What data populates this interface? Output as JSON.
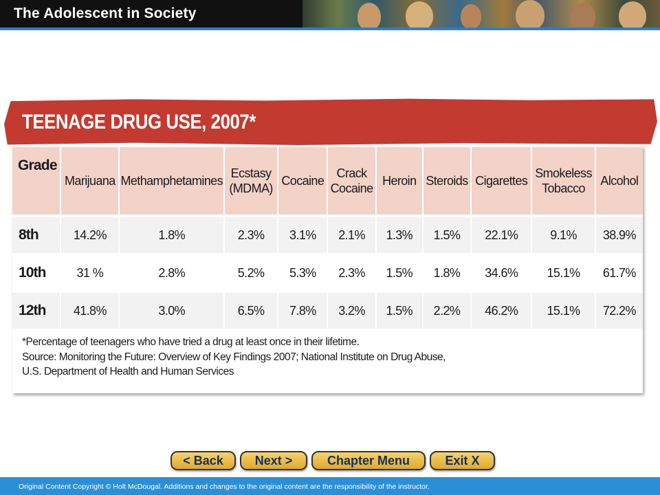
{
  "header": {
    "title": "The Adolescent in Society"
  },
  "banner": {
    "title": "TEENAGE DRUG USE, 2007*"
  },
  "table": {
    "columns": [
      {
        "label": "Grade",
        "sub": ""
      },
      {
        "label": "Marijuana",
        "sub": ""
      },
      {
        "label": "Methamphetamines",
        "sub": ""
      },
      {
        "label": "Ecstasy",
        "sub": "(MDMA)"
      },
      {
        "label": "Cocaine",
        "sub": ""
      },
      {
        "label": "Crack",
        "sub": "Cocaine"
      },
      {
        "label": "Heroin",
        "sub": ""
      },
      {
        "label": "Steroids",
        "sub": ""
      },
      {
        "label": "Cigarettes",
        "sub": ""
      },
      {
        "label": "Smokeless",
        "sub": "Tobacco"
      },
      {
        "label": "Alcohol",
        "sub": ""
      }
    ],
    "rows": [
      [
        "8th",
        "14.2%",
        "1.8%",
        "2.3%",
        "3.1%",
        "2.1%",
        "1.3%",
        "1.5%",
        "22.1%",
        "9.1%",
        "38.9%"
      ],
      [
        "10th",
        "31 %",
        "2.8%",
        "5.2%",
        "5.3%",
        "2.3%",
        "1.5%",
        "1.8%",
        "34.6%",
        "15.1%",
        "61.7%"
      ],
      [
        "12th",
        "41.8%",
        "3.0%",
        "6.5%",
        "7.8%",
        "3.2%",
        "1.5%",
        "2.2%",
        "46.2%",
        "15.1%",
        "72.2%"
      ]
    ]
  },
  "footnote": {
    "line1": "*Percentage of teenagers who have tried a drug at least once in their lifetime.",
    "line2": "Source: Monitoring the Future: Overview of Key Findings 2007; National Institute on Drug Abuse,",
    "line3": "U.S. Department of Health and Human Services"
  },
  "nav": {
    "back": "< Back",
    "next": "Next >",
    "chapter_menu": "Chapter Menu",
    "exit": "Exit X"
  },
  "footer": {
    "copyright": "Original Content Copyright © Holt McDougal. Additions and changes to the original content are the responsibility of the instructor."
  },
  "colors": {
    "banner": "#c23a30",
    "header_bg": "#111111",
    "accent_blue": "#2a8fd6",
    "table_header": "#f3d2c8",
    "button": "#f0c24e",
    "button_text": "#12305a"
  }
}
